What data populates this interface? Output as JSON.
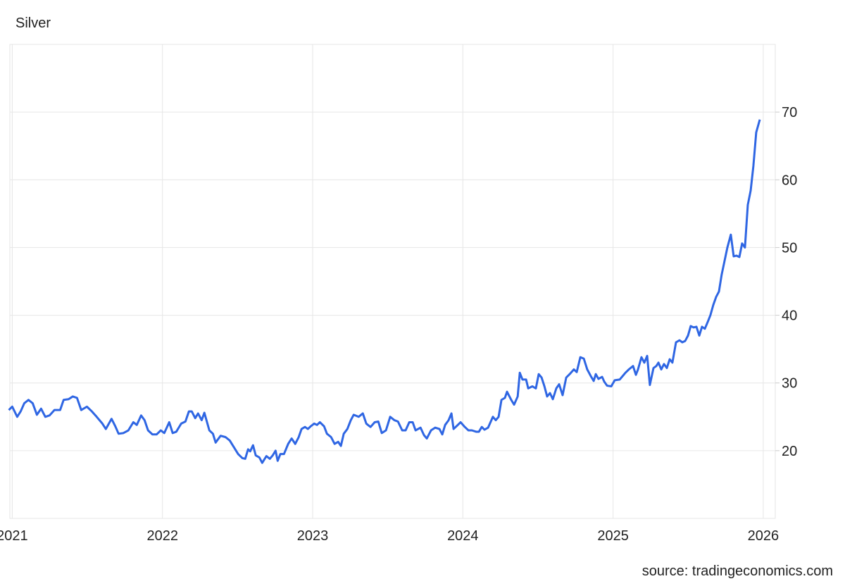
{
  "chart_data": {
    "type": "line",
    "title": "Silver",
    "source": "source: tradingeconomics.com",
    "color": "#2f66e3",
    "grid": true,
    "xlim": [
      2020.97,
      2026.08
    ],
    "xticks": [
      2021,
      2022,
      2023,
      2024,
      2025,
      2026
    ],
    "ylim": [
      10,
      80
    ],
    "yticks": [
      20,
      30,
      40,
      50,
      60,
      70
    ],
    "x": [
      2020.977,
      2021.0,
      2021.033,
      2021.056,
      2021.08,
      2021.108,
      2021.136,
      2021.164,
      2021.192,
      2021.22,
      2021.248,
      2021.281,
      2021.319,
      2021.342,
      2021.375,
      2021.403,
      2021.431,
      2021.459,
      2021.497,
      2021.53,
      2021.562,
      2021.6,
      2021.623,
      2021.661,
      2021.684,
      2021.708,
      2021.74,
      2021.773,
      2021.806,
      2021.829,
      2021.858,
      2021.881,
      2021.904,
      2021.933,
      2021.961,
      2021.989,
      2022.012,
      2022.045,
      2022.068,
      2022.092,
      2022.125,
      2022.153,
      2022.176,
      2022.195,
      2022.218,
      2022.237,
      2022.261,
      2022.279,
      2022.312,
      2022.336,
      2022.354,
      2022.387,
      2022.42,
      2022.448,
      2022.476,
      2022.504,
      2022.532,
      2022.551,
      2022.57,
      2022.584,
      2022.603,
      2022.621,
      2022.645,
      2022.664,
      2022.692,
      2022.715,
      2022.734,
      2022.753,
      2022.767,
      2022.785,
      2022.809,
      2022.837,
      2022.86,
      2022.884,
      2022.907,
      2022.926,
      2022.949,
      2022.968,
      2022.987,
      2023.01,
      2023.029,
      2023.048,
      2023.076,
      2023.095,
      2023.123,
      2023.146,
      2023.17,
      2023.188,
      2023.207,
      2023.231,
      2023.254,
      2023.273,
      2023.306,
      2023.334,
      2023.357,
      2023.385,
      2023.413,
      2023.437,
      2023.46,
      2023.488,
      2023.516,
      2023.544,
      2023.568,
      2023.596,
      2023.619,
      2023.643,
      2023.666,
      2023.685,
      2023.718,
      2023.741,
      2023.76,
      2023.788,
      2023.816,
      2023.844,
      2023.863,
      2023.882,
      2023.905,
      2023.924,
      2023.938,
      2023.957,
      2023.985,
      2024.013,
      2024.037,
      2024.06,
      2024.088,
      2024.107,
      2024.126,
      2024.144,
      2024.168,
      2024.2,
      2024.219,
      2024.238,
      2024.257,
      2024.28,
      2024.294,
      2024.322,
      2024.341,
      2024.365,
      2024.379,
      2024.397,
      2024.421,
      2024.435,
      2024.463,
      2024.486,
      2024.505,
      2024.524,
      2024.543,
      2024.561,
      2024.58,
      2024.599,
      2024.622,
      2024.641,
      2024.664,
      2024.688,
      2024.711,
      2024.739,
      2024.758,
      2024.782,
      2024.805,
      2024.828,
      2024.852,
      2024.871,
      2024.885,
      2024.903,
      2024.927,
      2024.941,
      2024.96,
      2024.988,
      2025.011,
      2025.044,
      2025.063,
      2025.082,
      2025.105,
      2025.133,
      2025.152,
      2025.166,
      2025.189,
      2025.208,
      2025.227,
      2025.245,
      2025.269,
      2025.288,
      2025.302,
      2025.321,
      2025.339,
      2025.358,
      2025.377,
      2025.395,
      2025.419,
      2025.442,
      2025.461,
      2025.48,
      2025.499,
      2025.517,
      2025.536,
      2025.555,
      2025.574,
      2025.592,
      2025.611,
      2025.63,
      2025.648,
      2025.667,
      2025.686,
      2025.705,
      2025.723,
      2025.742,
      2025.761,
      2025.784,
      2025.803,
      2025.822,
      2025.841,
      2025.859,
      2025.878,
      2025.897,
      2025.916,
      2025.934,
      2025.953,
      2025.977
    ],
    "values": [
      26.0,
      26.5,
      25.0,
      25.8,
      27.0,
      27.5,
      27.0,
      25.3,
      26.2,
      25.0,
      25.2,
      26.0,
      26.0,
      27.5,
      27.6,
      28.0,
      27.8,
      26.0,
      26.5,
      25.8,
      25.0,
      24.0,
      23.2,
      24.7,
      23.7,
      22.5,
      22.6,
      23.0,
      24.2,
      23.8,
      25.2,
      24.5,
      23.0,
      22.4,
      22.4,
      23.0,
      22.6,
      24.2,
      22.6,
      22.8,
      24.0,
      24.3,
      25.8,
      25.8,
      24.8,
      25.5,
      24.5,
      25.6,
      23.0,
      22.5,
      21.2,
      22.2,
      22.0,
      21.5,
      20.5,
      19.5,
      18.9,
      18.8,
      20.2,
      19.9,
      20.8,
      19.3,
      19.0,
      18.2,
      19.2,
      18.8,
      19.3,
      20.0,
      18.5,
      19.5,
      19.5,
      21.0,
      21.8,
      21.0,
      22.0,
      23.2,
      23.5,
      23.2,
      23.6,
      24.0,
      23.8,
      24.2,
      23.6,
      22.5,
      22.0,
      21.0,
      21.3,
      20.7,
      22.5,
      23.2,
      24.5,
      25.3,
      25.0,
      25.5,
      24.0,
      23.5,
      24.2,
      24.3,
      22.6,
      23.0,
      25.0,
      24.5,
      24.3,
      23.0,
      23.0,
      24.2,
      24.2,
      23.0,
      23.4,
      22.3,
      21.8,
      23.0,
      23.4,
      23.2,
      22.4,
      23.8,
      24.5,
      25.5,
      23.2,
      23.6,
      24.2,
      23.5,
      23.0,
      23.0,
      22.8,
      22.8,
      23.5,
      23.1,
      23.4,
      25.0,
      24.5,
      25.0,
      27.5,
      27.8,
      28.7,
      27.5,
      26.8,
      28.0,
      31.5,
      30.5,
      30.5,
      29.2,
      29.5,
      29.2,
      31.3,
      30.8,
      29.5,
      28.0,
      28.5,
      27.6,
      29.2,
      29.8,
      28.2,
      30.8,
      31.3,
      32.0,
      31.6,
      33.8,
      33.6,
      32.0,
      31.0,
      30.3,
      31.3,
      30.6,
      30.9,
      30.2,
      29.6,
      29.5,
      30.4,
      30.5,
      31.0,
      31.5,
      32.0,
      32.5,
      31.2,
      32.0,
      33.8,
      33.0,
      34.0,
      29.7,
      32.2,
      32.5,
      33.0,
      32.0,
      32.8,
      32.2,
      33.5,
      33.0,
      36.0,
      36.3,
      36.0,
      36.2,
      37.0,
      38.4,
      38.2,
      38.3,
      37.0,
      38.3,
      38.0,
      39.0,
      40.0,
      41.5,
      42.7,
      43.5,
      46.0,
      48.0,
      50.0,
      51.9,
      48.7,
      48.8,
      48.6,
      50.6,
      50.0,
      56.3,
      58.4,
      62.0,
      67.0,
      68.9
    ]
  }
}
